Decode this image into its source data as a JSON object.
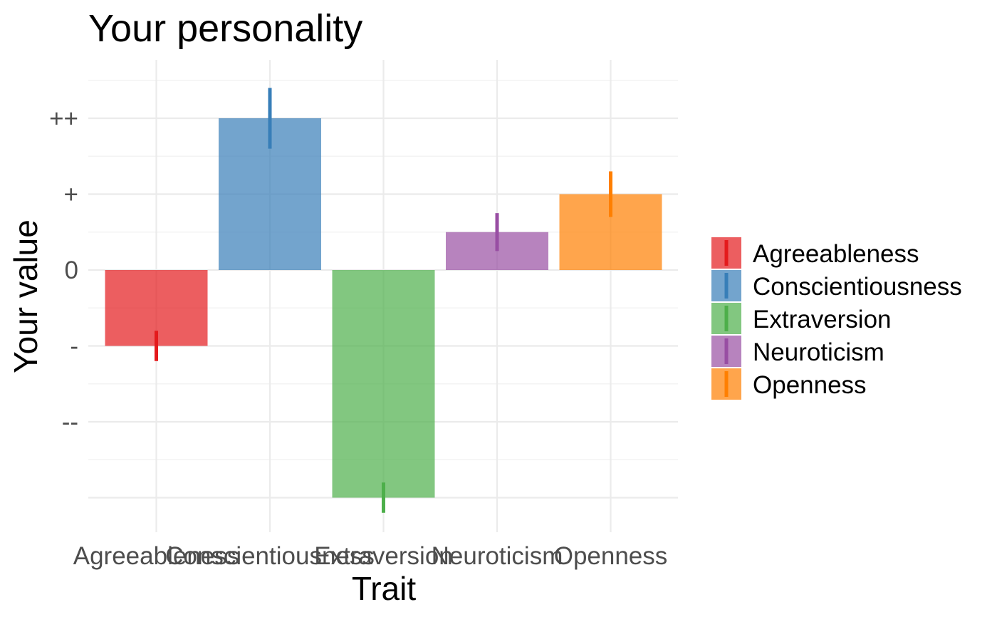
{
  "chart_data": {
    "type": "bar",
    "title": "Your personality",
    "xlabel": "Trait",
    "ylabel": "Your value",
    "categories": [
      "Agreeableness",
      "Conscientiousness",
      "Extraversion",
      "Neuroticism",
      "Openness"
    ],
    "values": [
      -1,
      2,
      -3,
      0.5,
      1
    ],
    "error_bars": [
      {
        "low": -1.2,
        "high": -0.8
      },
      {
        "low": 1.6,
        "high": 2.4
      },
      {
        "low": -3.2,
        "high": -2.8
      },
      {
        "low": 0.25,
        "high": 0.75
      },
      {
        "low": 0.7,
        "high": 1.3
      }
    ],
    "colors": {
      "Agreeableness": "#e41a1c",
      "Conscientiousness": "#377eb8",
      "Extraversion": "#4daf4a",
      "Neuroticism": "#984ea3",
      "Openness": "#ff7f00"
    },
    "bar_opacity": 0.7,
    "y_ticks": [
      {
        "value": 2,
        "label": "++"
      },
      {
        "value": 1,
        "label": "+"
      },
      {
        "value": 0,
        "label": "0"
      },
      {
        "value": -1,
        "label": "-"
      },
      {
        "value": -2,
        "label": "--"
      }
    ],
    "ylim": [
      -3.3,
      2.5
    ],
    "grid": true,
    "legend": {
      "placement": "right",
      "entries": [
        "Agreeableness",
        "Conscientiousness",
        "Extraversion",
        "Neuroticism",
        "Openness"
      ]
    }
  }
}
